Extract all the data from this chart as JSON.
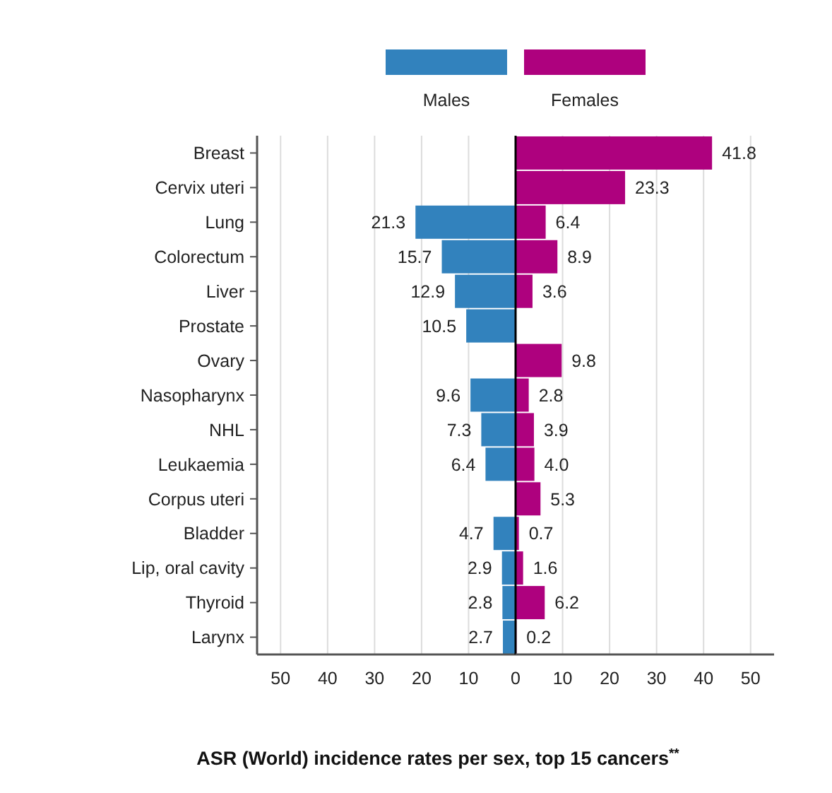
{
  "chart_data": [
    {
      "type": "bar",
      "orientation": "horizontal",
      "title": "ASR (World) incidence rates per sex, top 15 cancers$^{**}$",
      "categories": [
        "Breast",
        "Cervix uteri",
        "Lung",
        "Colorectum",
        "Liver",
        "Prostate",
        "Ovary",
        "Nasopharynx",
        "NHL",
        "Leukaemia",
        "Corpus uteri",
        "Bladder",
        "Lip, oral cavity",
        "Thyroid",
        "Larynx"
      ],
      "series": [
        {
          "name": "Males",
          "color": "#3282bd",
          "values": [
            null,
            null,
            21.3,
            15.7,
            12.9,
            10.5,
            null,
            9.6,
            7.3,
            6.4,
            null,
            4.7,
            2.9,
            2.8,
            2.7
          ]
        }
      ],
      "data_labels": true,
      "xlim": [
        55,
        0
      ],
      "xticks": [
        50,
        40,
        30,
        20,
        10,
        0
      ],
      "grid": "x",
      "legend": "top"
    },
    {
      "type": "bar",
      "orientation": "horizontal",
      "categories": [
        null,
        null,
        null,
        null,
        null,
        null,
        null,
        null,
        null,
        null,
        null,
        null,
        null,
        null,
        null
      ],
      "series": [
        {
          "name": "Females",
          "color": "#ae017e",
          "values": [
            41.8,
            23.3,
            6.4,
            8.9,
            3.6,
            null,
            9.8,
            2.8,
            3.9,
            4.0,
            5.3,
            0.7,
            1.6,
            6.2,
            0.2
          ],
          "value_labels": [
            "41.8",
            "23.3",
            "6.4",
            "8.9",
            "3.6",
            null,
            "9.8",
            "2.8",
            "3.9",
            "4.0",
            "5.3",
            "0.7",
            "1.6",
            "6.2",
            "0.2"
          ]
        }
      ],
      "xlim": [
        0,
        55
      ],
      "xticks": [
        10,
        20,
        30,
        40,
        50
      ],
      "tick_labels": "x",
      "grid": "x",
      "legend": "top"
    }
  ]
}
